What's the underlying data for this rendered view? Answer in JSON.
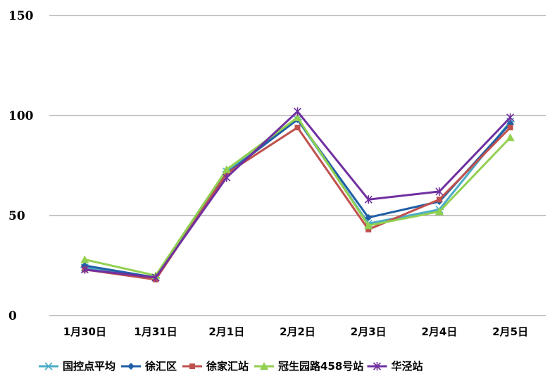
{
  "chart_data": {
    "type": "line",
    "categories": [
      "1月30日",
      "1月31日",
      "2月1日",
      "2月2日",
      "2月3日",
      "2月4日",
      "2月5日"
    ],
    "ylim": [
      0,
      150
    ],
    "yticks": [
      0,
      50,
      100,
      150
    ],
    "grid": true,
    "legend_position": "bottom",
    "series": [
      {
        "name": "国控点平均",
        "color": "#4bacc6",
        "marker": "asterisk",
        "values": [
          24,
          19,
          72,
          98,
          46,
          53,
          97
        ]
      },
      {
        "name": "徐汇区",
        "color": "#1f5fa6",
        "marker": "diamond",
        "values": [
          25,
          19,
          71,
          98,
          49,
          57,
          96
        ]
      },
      {
        "name": "徐家汇站",
        "color": "#c0504d",
        "marker": "square",
        "values": [
          23,
          18,
          71,
          94,
          43,
          58,
          94
        ]
      },
      {
        "name": "冠生园路458号站",
        "color": "#92d050",
        "marker": "triangle",
        "values": [
          28,
          20,
          73,
          99,
          45,
          52,
          89
        ]
      },
      {
        "name": "华泾站",
        "color": "#7030a0",
        "marker": "star",
        "values": [
          23,
          19,
          69,
          102,
          58,
          62,
          99
        ]
      }
    ]
  }
}
